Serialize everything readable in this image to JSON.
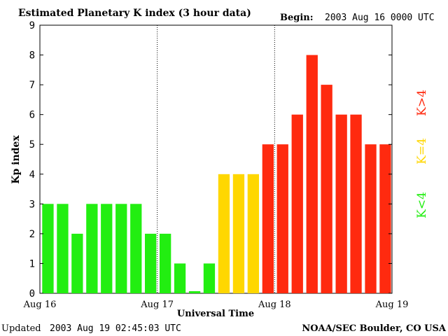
{
  "header": {
    "title": "Estimated Planetary K index (3 hour data)",
    "begin_label": "Begin:",
    "begin_value": "2003 Aug 16 0000 UTC"
  },
  "footer": {
    "updated_label": "Updated",
    "updated_value": "2003 Aug 19 02:45:03 UTC",
    "source": "NOAA/SEC Boulder, CO USA"
  },
  "chart_data": {
    "type": "bar",
    "title": "Estimated Planetary K index (3 hour data)",
    "xlabel": "Universal Time",
    "ylabel": "Kp index",
    "ylim": [
      0,
      9
    ],
    "yticks": [
      "0",
      "1",
      "2",
      "3",
      "4",
      "5",
      "6",
      "7",
      "8",
      "9"
    ],
    "xticks": [
      "Aug 16",
      "Aug 17",
      "Aug 18",
      "Aug 19"
    ],
    "day_dividers": [
      "Aug 17",
      "Aug 18"
    ],
    "values": [
      3,
      3,
      2,
      3,
      3,
      3,
      3,
      2,
      2,
      1,
      0.07,
      1,
      4,
      4,
      4,
      5,
      5,
      6,
      8,
      7,
      6,
      6,
      5,
      5
    ],
    "colors": {
      "low": "#22ee11",
      "mid": "#ffd700",
      "high": "#ff2a0f"
    },
    "legend": [
      {
        "label": "K<4",
        "color": "#22ee11"
      },
      {
        "label": "K=4",
        "color": "#ffd700"
      },
      {
        "label": "K>4",
        "color": "#ff2a0f"
      }
    ],
    "grid": false,
    "legend_placement": "right"
  }
}
